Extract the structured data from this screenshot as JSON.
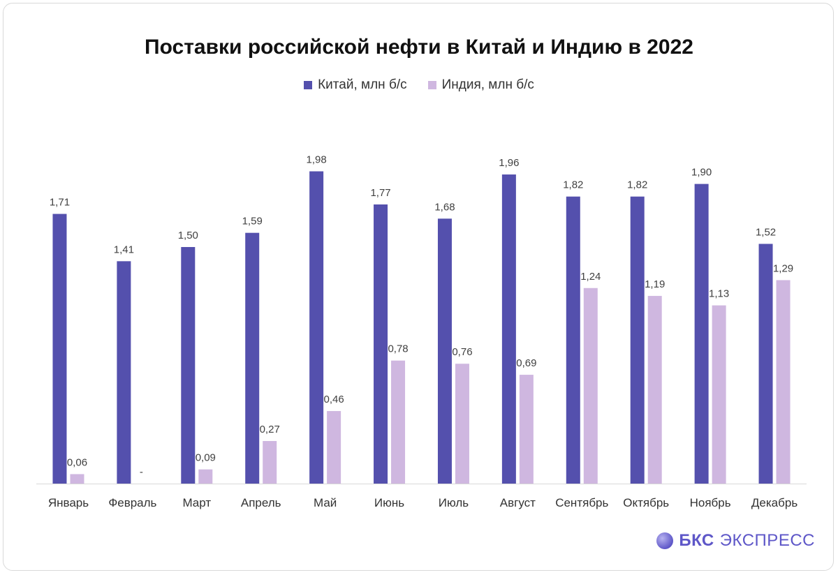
{
  "chart_data": {
    "type": "bar",
    "title": "Поставки российской нефти в Китай и Индию в 2022",
    "categories": [
      "Январь",
      "Февраль",
      "Март",
      "Апрель",
      "Май",
      "Июнь",
      "Июль",
      "Август",
      "Сентябрь",
      "Октябрь",
      "Ноябрь",
      "Декабрь"
    ],
    "series": [
      {
        "name": "Китай, млн б/с",
        "color": "#5450ad",
        "values": [
          1.71,
          1.41,
          1.5,
          1.59,
          1.98,
          1.77,
          1.68,
          1.96,
          1.82,
          1.82,
          1.9,
          1.52
        ],
        "labels": [
          "1,71",
          "1,41",
          "1,50",
          "1,59",
          "1,98",
          "1,77",
          "1,68",
          "1,96",
          "1,82",
          "1,82",
          "1,90",
          "1,52"
        ]
      },
      {
        "name": "Индия, млн б/с",
        "color": "#cfb7e0",
        "values": [
          0.06,
          0,
          0.09,
          0.27,
          0.46,
          0.78,
          0.76,
          0.69,
          1.24,
          1.19,
          1.13,
          1.29
        ],
        "labels": [
          "0,06",
          "-",
          "0,09",
          "0,27",
          "0,46",
          "0,78",
          "0,76",
          "0,69",
          "1,24",
          "1,19",
          "1,13",
          "1,29"
        ]
      }
    ],
    "ylim": [
      0,
      2.0
    ],
    "grid": false,
    "legend_position": "top"
  },
  "logo": {
    "brand": "БКС",
    "product": "ЭКСПРЕСС"
  }
}
